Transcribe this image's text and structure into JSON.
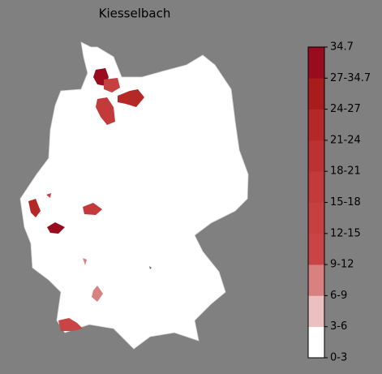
{
  "title": "Kiesselbach",
  "colorbar": {
    "labels": [
      "0-3",
      "3-6",
      "6-9",
      "9-12",
      "12-15",
      "15-18",
      "18-21",
      "21-24",
      "24-27",
      "27-34.7",
      "34.7"
    ],
    "colors": [
      "#ffffff",
      "#ecc0c0",
      "#d98080",
      "#c94545",
      "#c64040",
      "#c23a3a",
      "#bc3232",
      "#b42828",
      "#a81c1c",
      "#990b1e"
    ]
  }
}
